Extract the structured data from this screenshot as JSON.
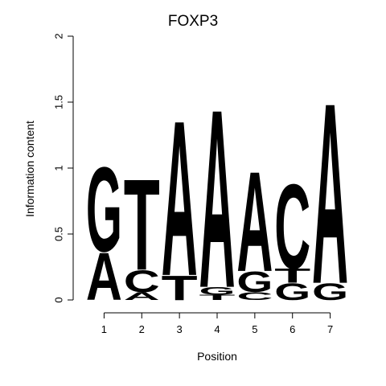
{
  "chart_data": {
    "type": "sequence-logo",
    "title": "FOXP3",
    "xlabel": "Position",
    "ylabel": "Information content",
    "ylim": [
      0,
      2
    ],
    "y_ticks": [
      "0",
      "0.5",
      "1",
      "1.5",
      "2"
    ],
    "y_tick_values": [
      0,
      0.5,
      1,
      1.5,
      2
    ],
    "x_ticks": [
      "1",
      "2",
      "3",
      "4",
      "5",
      "6",
      "7"
    ],
    "colors": {
      "A": "#00ff00",
      "C": "#0000ff",
      "G": "#ffa500",
      "T": "#ff0000"
    },
    "positions": [
      {
        "position": "1",
        "stack": [
          {
            "letter": "A",
            "height": 0.37
          },
          {
            "letter": "G",
            "height": 0.66
          }
        ]
      },
      {
        "position": "2",
        "stack": [
          {
            "letter": "A",
            "height": 0.06
          },
          {
            "letter": "C",
            "height": 0.17
          },
          {
            "letter": "T",
            "height": 0.71
          }
        ]
      },
      {
        "position": "3",
        "stack": [
          {
            "letter": "T",
            "height": 0.19
          },
          {
            "letter": "A",
            "height": 1.21
          }
        ]
      },
      {
        "position": "4",
        "stack": [
          {
            "letter": "T",
            "height": 0.04
          },
          {
            "letter": "G",
            "height": 0.06
          },
          {
            "letter": "A",
            "height": 1.39
          }
        ]
      },
      {
        "position": "5",
        "stack": [
          {
            "letter": "C",
            "height": 0.06
          },
          {
            "letter": "G",
            "height": 0.16
          },
          {
            "letter": "A",
            "height": 0.78
          }
        ]
      },
      {
        "position": "6",
        "stack": [
          {
            "letter": "G",
            "height": 0.13
          },
          {
            "letter": "T",
            "height": 0.11
          },
          {
            "letter": "C",
            "height": 0.66
          }
        ]
      },
      {
        "position": "7",
        "stack": [
          {
            "letter": "G",
            "height": 0.13
          },
          {
            "letter": "A",
            "height": 1.41
          }
        ]
      }
    ]
  }
}
